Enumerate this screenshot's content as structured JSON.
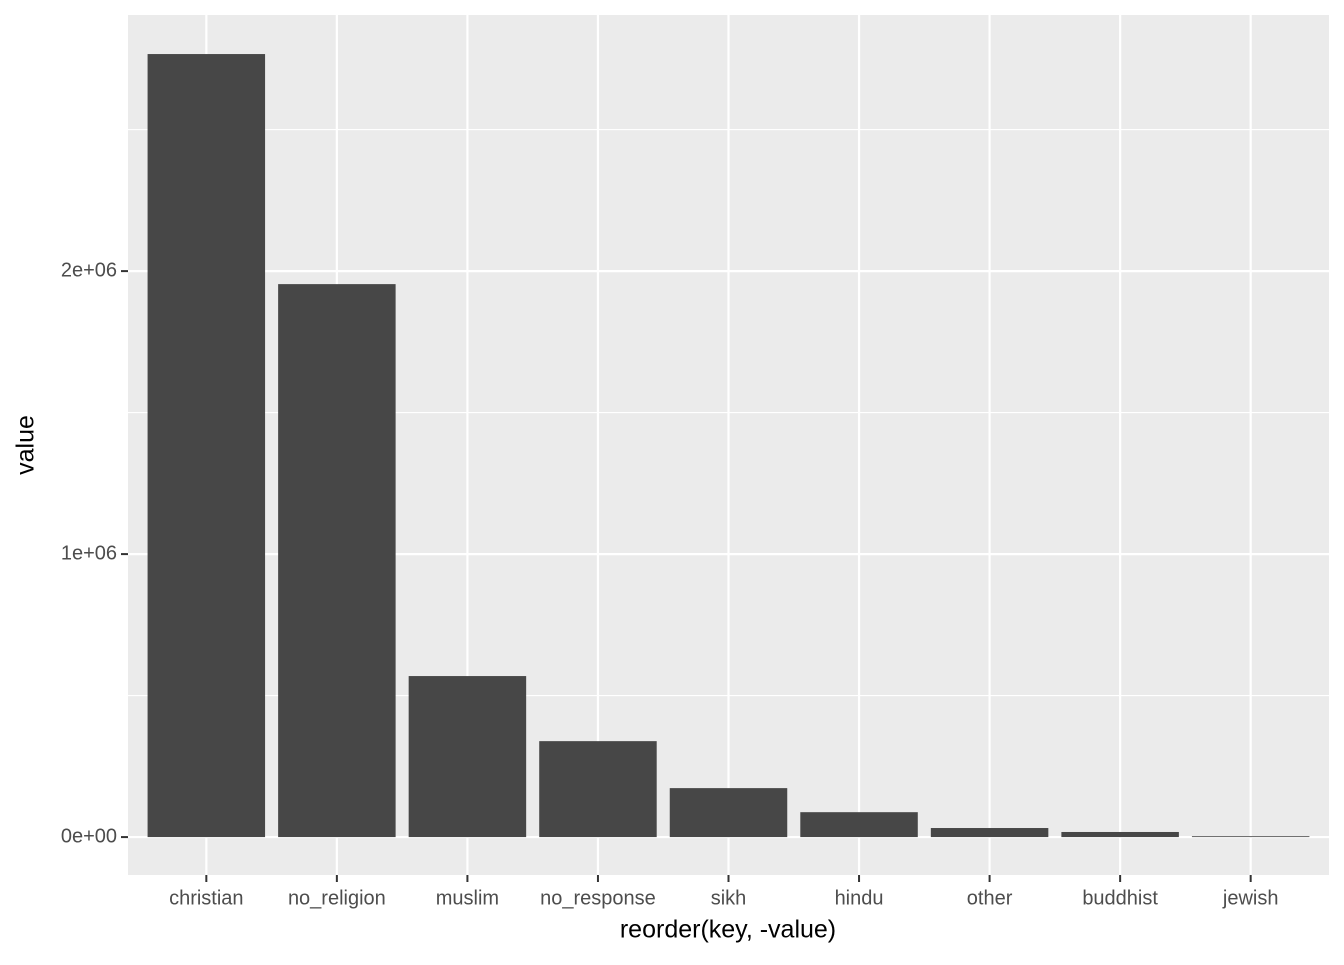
{
  "chart_data": {
    "type": "bar",
    "x_label": "reorder(key, -value)",
    "y_label": "value",
    "categories": [
      "christian",
      "no_religion",
      "muslim",
      "no_response",
      "sikh",
      "hindu",
      "other",
      "buddhist",
      "jewish"
    ],
    "values": [
      2767000,
      1954000,
      569000,
      339000,
      173000,
      88000,
      32000,
      18000,
      3000
    ],
    "color": "#474747",
    "ylim": [
      -134000,
      2905000
    ],
    "yticks": [
      {
        "value": 0,
        "label": "0e+00"
      },
      {
        "value": 1000000,
        "label": "1e+06"
      },
      {
        "value": 2000000,
        "label": "2e+06"
      }
    ],
    "minor_yticks": [
      500000,
      1500000,
      2500000
    ],
    "grid": true
  }
}
